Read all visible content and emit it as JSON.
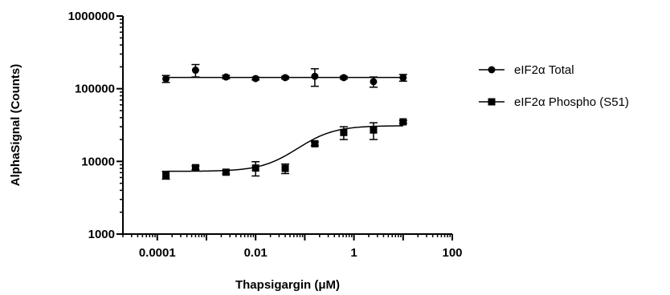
{
  "chart_data": {
    "type": "scatter",
    "title": "",
    "xlabel": "Thapsigargin (μM)",
    "ylabel": "AlphaSignal (Counts)",
    "xscale": "log",
    "yscale": "log",
    "xlim": [
      2e-05,
      100
    ],
    "ylim": [
      1000,
      1000000
    ],
    "x_tick_labels": [
      "0.0001",
      "0.01",
      "1",
      "100"
    ],
    "y_tick_labels": [
      "1000",
      "10000",
      "100000",
      "1000000"
    ],
    "grid": false,
    "legend_position": "right",
    "series": [
      {
        "name": "eIF2α Total",
        "marker": "circle",
        "color": "#000000",
        "x": [
          0.00015,
          0.0006,
          0.0025,
          0.01,
          0.04,
          0.16,
          0.62,
          2.5,
          10
        ],
        "y": [
          137000,
          180000,
          145000,
          138000,
          142000,
          148000,
          142000,
          125000,
          142000
        ],
        "error": [
          15000,
          35000,
          8000,
          6000,
          6000,
          40000,
          6000,
          20000,
          15000
        ],
        "fit": "flat",
        "fit_value": 143000
      },
      {
        "name": "eIF2α Phospho (S51)",
        "marker": "square",
        "color": "#000000",
        "x": [
          0.00015,
          0.0006,
          0.0025,
          0.01,
          0.04,
          0.16,
          0.62,
          2.5,
          10
        ],
        "y": [
          6500,
          8200,
          7100,
          8100,
          8000,
          17500,
          25000,
          27000,
          35000
        ],
        "error": [
          800,
          500,
          400,
          1800,
          1200,
          1000,
          5000,
          7000,
          1500
        ],
        "fit": "sigmoid",
        "fit_bottom": 7300,
        "fit_top": 31000,
        "fit_ec50": 0.13,
        "fit_hill": 1.2
      }
    ]
  }
}
